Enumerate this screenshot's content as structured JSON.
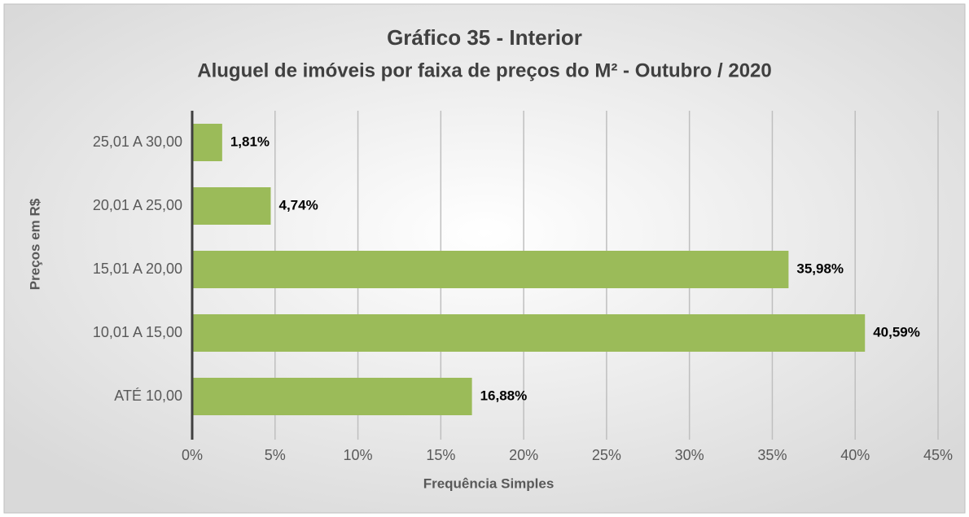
{
  "chart_data": {
    "type": "hbar",
    "title": "Gráfico 35 - Interior",
    "subtitle": "Aluguel de imóveis por faixa de preços do M² - Outubro / 2020",
    "x_label": "Frequência Simples",
    "y_label": "Preços em R$",
    "categories": [
      "25,01 A 30,00",
      "20,01 A 25,00",
      "15,01 A 20,00",
      "10,01 A 15,00",
      "ATÉ 10,00"
    ],
    "values": [
      1.81,
      4.74,
      35.98,
      40.59,
      16.88
    ],
    "value_labels": [
      "1,81%",
      "4,74%",
      "35,98%",
      "40,59%",
      "16,88%"
    ],
    "color": "#9bbb59",
    "xlim": [
      0,
      45
    ],
    "xticks": [
      {
        "value": 0,
        "label": "0%"
      },
      {
        "value": 5,
        "label": "5%"
      },
      {
        "value": 10,
        "label": "10%"
      },
      {
        "value": 15,
        "label": "15%"
      },
      {
        "value": 20,
        "label": "20%"
      },
      {
        "value": 25,
        "label": "25%"
      },
      {
        "value": 30,
        "label": "30%"
      },
      {
        "value": 35,
        "label": "35%"
      },
      {
        "value": 40,
        "label": "40%"
      },
      {
        "value": 45,
        "label": "45%"
      }
    ],
    "grid": true
  }
}
